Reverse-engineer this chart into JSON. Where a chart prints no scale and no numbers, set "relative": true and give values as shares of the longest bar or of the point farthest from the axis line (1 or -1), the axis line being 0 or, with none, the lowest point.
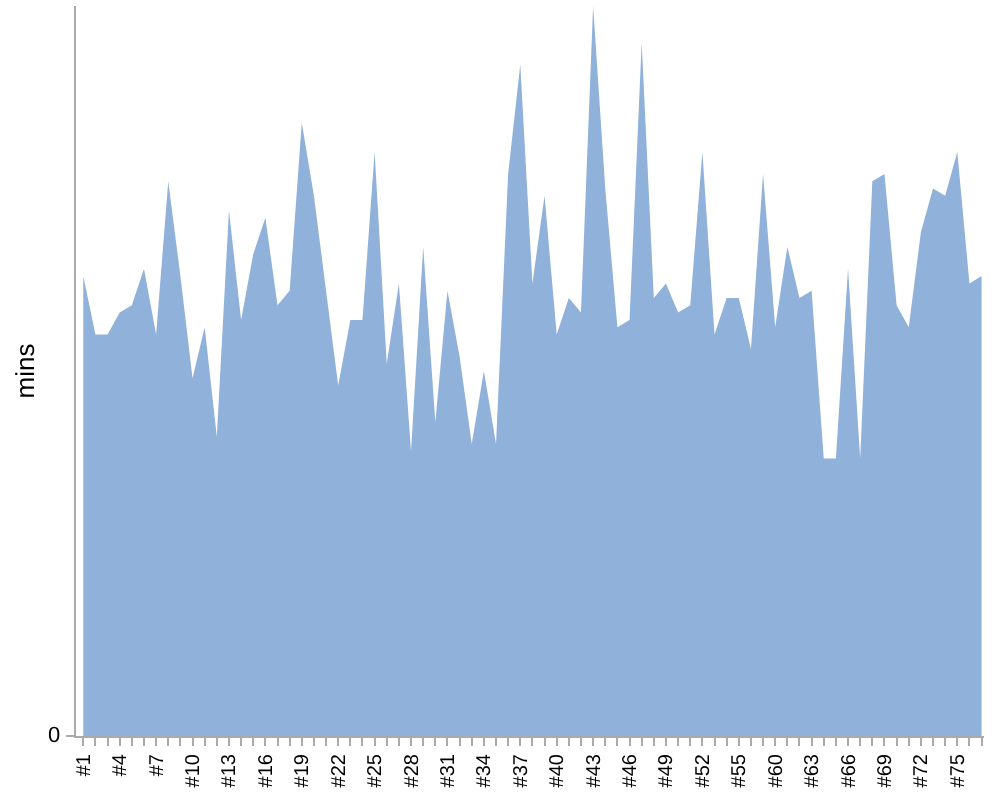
{
  "chart_data": {
    "type": "area",
    "ylabel": "mins",
    "relative": true,
    "annotations": [
      "0"
    ],
    "grid": false,
    "color": "#8fb1da",
    "categories": [
      "#1",
      null,
      null,
      "#4",
      null,
      null,
      "#7",
      null,
      null,
      "#10",
      null,
      null,
      "#13",
      null,
      null,
      "#16",
      null,
      null,
      "#19",
      null,
      null,
      "#22",
      null,
      null,
      "#25",
      null,
      null,
      "#28",
      null,
      null,
      "#31",
      null,
      null,
      "#34",
      null,
      null,
      "#37",
      null,
      null,
      "#40",
      null,
      null,
      "#43",
      null,
      null,
      "#46",
      null,
      null,
      "#49",
      null,
      null,
      "#52",
      null,
      null,
      "#55",
      null,
      null,
      "#60",
      null,
      null,
      "#63",
      null,
      null,
      "#66",
      null,
      null,
      "#69",
      null,
      null,
      "#72",
      null,
      null,
      "#75",
      null,
      null
    ],
    "values": [
      0.63,
      0.55,
      0.55,
      0.58,
      0.59,
      0.64,
      0.55,
      0.76,
      0.63,
      0.49,
      0.56,
      0.41,
      0.72,
      0.57,
      0.66,
      0.71,
      0.59,
      0.61,
      0.84,
      0.74,
      0.61,
      0.48,
      0.57,
      0.57,
      0.8,
      0.51,
      0.62,
      0.39,
      0.67,
      0.43,
      0.61,
      0.52,
      0.4,
      0.5,
      0.4,
      0.77,
      0.92,
      0.62,
      0.74,
      0.55,
      0.6,
      0.58,
      1,
      0.75,
      0.56,
      0.57,
      0.95,
      0.6,
      0.62,
      0.58,
      0.59,
      0.8,
      0.55,
      0.6,
      0.6,
      0.53,
      0.77,
      0.56,
      0.67,
      0.6,
      0.61,
      0.38,
      0.38,
      0.64,
      0.38,
      0.76,
      0.77,
      0.59,
      0.56,
      0.69,
      0.75,
      0.74,
      0.8,
      0.62,
      0.63
    ]
  }
}
